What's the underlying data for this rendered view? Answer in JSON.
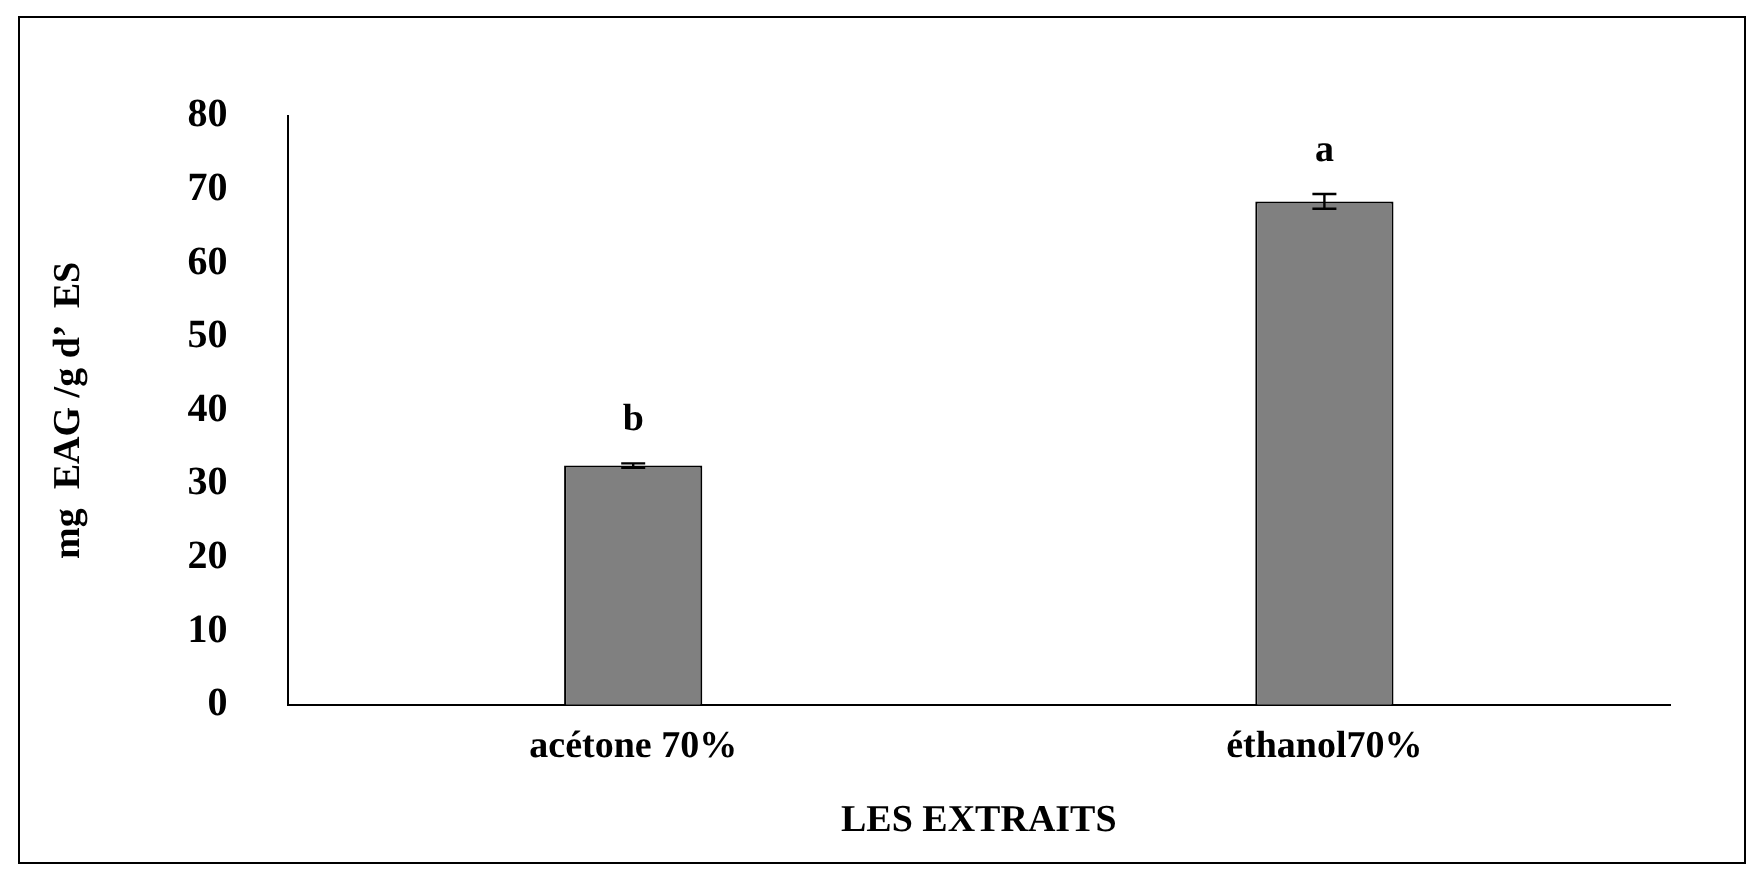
{
  "chart_data": {
    "type": "bar",
    "xlabel": "LES EXTRAITS",
    "ylabel": "mg  EAG /g d’  ES",
    "categories": [
      "acétone 70%",
      "éthanol70%"
    ],
    "values": [
      32.5,
      68.4
    ],
    "errors": [
      0.3,
      1
    ],
    "color": "#808080",
    "ylim": [
      0,
      80
    ],
    "yticks": [
      0,
      10,
      20,
      30,
      40,
      50,
      60,
      70,
      80
    ],
    "grid": false,
    "annotations": [
      "b",
      "a"
    ]
  }
}
